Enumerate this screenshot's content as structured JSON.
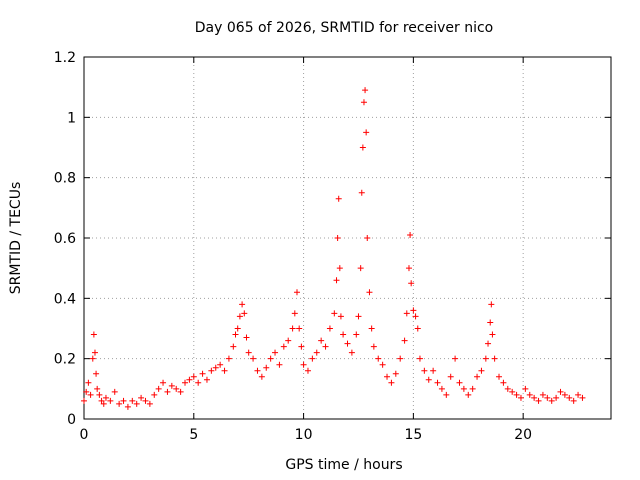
{
  "chart_data": {
    "type": "scatter",
    "title": "Day 065 of 2026, SRMTID for receiver nico",
    "xlabel": "GPS time / hours",
    "ylabel": "SRMTID / TECUs",
    "xlim": [
      0,
      24
    ],
    "ylim": [
      0,
      1.2
    ],
    "xticks": [
      0,
      5,
      10,
      15,
      20
    ],
    "xtick_labels": [
      "0",
      "5",
      "10",
      "15",
      "20"
    ],
    "yticks": [
      0,
      0.2,
      0.4,
      0.6,
      0.8,
      1.0,
      1.2
    ],
    "ytick_labels": [
      "0",
      "0.2",
      "0.4",
      "0.6",
      "0.8",
      "1",
      "1.2"
    ],
    "grid": true,
    "marker": "+",
    "marker_color": "#ff0000",
    "series": [
      {
        "name": "SRMTID",
        "x": [
          0.0,
          0.1,
          0.2,
          0.3,
          0.4,
          0.45,
          0.5,
          0.55,
          0.6,
          0.7,
          0.8,
          0.9,
          1.0,
          1.2,
          1.4,
          1.6,
          1.8,
          2.0,
          2.2,
          2.4,
          2.6,
          2.8,
          3.0,
          3.2,
          3.4,
          3.6,
          3.8,
          4.0,
          4.2,
          4.4,
          4.6,
          4.8,
          5.0,
          5.2,
          5.4,
          5.6,
          5.8,
          6.0,
          6.2,
          6.4,
          6.6,
          6.8,
          6.9,
          7.0,
          7.1,
          7.2,
          7.3,
          7.4,
          7.5,
          7.7,
          7.9,
          8.1,
          8.3,
          8.5,
          8.7,
          8.9,
          9.1,
          9.3,
          9.5,
          9.6,
          9.7,
          9.8,
          9.9,
          10.0,
          10.2,
          10.4,
          10.6,
          10.8,
          11.0,
          11.2,
          11.4,
          11.5,
          11.55,
          11.6,
          11.65,
          11.7,
          11.8,
          12.0,
          12.2,
          12.4,
          12.5,
          12.6,
          12.65,
          12.7,
          12.75,
          12.8,
          12.85,
          12.9,
          13.0,
          13.1,
          13.2,
          13.4,
          13.6,
          13.8,
          14.0,
          14.2,
          14.4,
          14.6,
          14.7,
          14.8,
          14.85,
          14.9,
          15.0,
          15.1,
          15.2,
          15.3,
          15.5,
          15.7,
          15.9,
          16.1,
          16.3,
          16.5,
          16.7,
          16.9,
          17.1,
          17.3,
          17.5,
          17.7,
          17.9,
          18.1,
          18.3,
          18.4,
          18.5,
          18.55,
          18.6,
          18.7,
          18.9,
          19.1,
          19.3,
          19.5,
          19.7,
          19.9,
          20.1,
          20.3,
          20.5,
          20.7,
          20.9,
          21.1,
          21.3,
          21.5,
          21.7,
          21.9,
          22.1,
          22.3,
          22.5,
          22.7
        ],
        "y": [
          0.06,
          0.09,
          0.12,
          0.08,
          0.2,
          0.28,
          0.22,
          0.15,
          0.1,
          0.08,
          0.06,
          0.05,
          0.07,
          0.06,
          0.09,
          0.05,
          0.06,
          0.04,
          0.06,
          0.05,
          0.07,
          0.06,
          0.05,
          0.08,
          0.1,
          0.12,
          0.09,
          0.11,
          0.1,
          0.09,
          0.12,
          0.13,
          0.14,
          0.12,
          0.15,
          0.13,
          0.16,
          0.17,
          0.18,
          0.16,
          0.2,
          0.24,
          0.28,
          0.3,
          0.34,
          0.38,
          0.35,
          0.27,
          0.22,
          0.2,
          0.16,
          0.14,
          0.17,
          0.2,
          0.22,
          0.18,
          0.24,
          0.26,
          0.3,
          0.35,
          0.42,
          0.3,
          0.24,
          0.18,
          0.16,
          0.2,
          0.22,
          0.26,
          0.24,
          0.3,
          0.35,
          0.46,
          0.6,
          0.73,
          0.5,
          0.34,
          0.28,
          0.25,
          0.22,
          0.28,
          0.34,
          0.5,
          0.75,
          0.9,
          1.05,
          1.09,
          0.95,
          0.6,
          0.42,
          0.3,
          0.24,
          0.2,
          0.18,
          0.14,
          0.12,
          0.15,
          0.2,
          0.26,
          0.35,
          0.5,
          0.61,
          0.45,
          0.36,
          0.34,
          0.3,
          0.2,
          0.16,
          0.13,
          0.16,
          0.12,
          0.1,
          0.08,
          0.14,
          0.2,
          0.12,
          0.1,
          0.08,
          0.1,
          0.14,
          0.16,
          0.2,
          0.25,
          0.32,
          0.38,
          0.28,
          0.2,
          0.14,
          0.12,
          0.1,
          0.09,
          0.08,
          0.07,
          0.1,
          0.08,
          0.07,
          0.06,
          0.08,
          0.07,
          0.06,
          0.07,
          0.09,
          0.08,
          0.07,
          0.06,
          0.08,
          0.07
        ]
      }
    ]
  }
}
